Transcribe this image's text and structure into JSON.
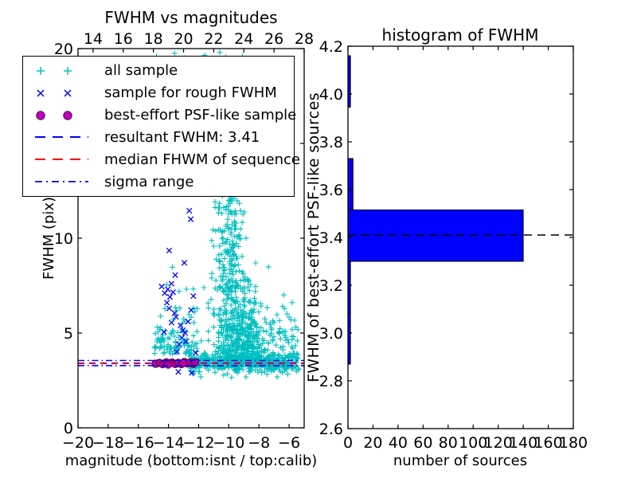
{
  "colors": {
    "cyan_sample": "#00bfbf",
    "blue": "#0000ff",
    "magenta": "#bf00bf",
    "magenta_edge": "#4d004d",
    "red": "#ff0000",
    "black": "#000000",
    "bar_fill": "#0000ff",
    "background": "#ffffff"
  },
  "render_seed": 20421,
  "left_plot": {
    "title": "FWHM vs magnitudes",
    "xlabel": "magnitude (bottom:isnt / top:calib)",
    "ylabel": "FWHM (pix)",
    "legend": [
      {
        "label": "all sample",
        "marker": "plus",
        "color": "#00bfbf"
      },
      {
        "label": "sample for rough FWHM",
        "marker": "x",
        "color": "#0000ff"
      },
      {
        "label": "best-effort PSF-like sample",
        "marker": "circle",
        "color": "#bf00bf"
      },
      {
        "label": "resultant FWHM: 3.41",
        "marker": "dashed",
        "color": "#0000ff"
      },
      {
        "label": "median FHWM of sequence",
        "marker": "dashed",
        "color": "#ff0000"
      },
      {
        "label": "sigma range",
        "marker": "dashdot",
        "color": "#0000ff"
      }
    ]
  },
  "right_plot": {
    "title": "histogram of FWHM",
    "xlabel": "number of sources",
    "ylabel": "FWHM of best-effort PSF-like sources"
  },
  "chart_data": [
    {
      "type": "scatter",
      "title": "FWHM vs magnitudes",
      "xlabel": "magnitude (bottom:isnt / top:calib)",
      "ylabel": "FWHM (pix)",
      "xlim_bottom": [
        -20,
        -5
      ],
      "xlim_top": [
        13,
        28
      ],
      "ylim": [
        0,
        20
      ],
      "xticks_bottom": [
        -20,
        -18,
        -16,
        -14,
        -12,
        -10,
        -8,
        -6
      ],
      "xticks_top": [
        14,
        16,
        18,
        20,
        22,
        24,
        26,
        28
      ],
      "yticks": [
        0,
        5,
        10,
        15,
        20
      ],
      "series": [
        {
          "name": "all sample",
          "marker": "plus",
          "color": "#00bfbf",
          "clusters": [
            {
              "n": 330,
              "x": [
                "u",
                -12.6,
                -5.35
              ],
              "y": [
                "n",
                3.45,
                0.28
              ]
            },
            {
              "n": 120,
              "x": [
                "n",
                -8.3,
                1.3
              ],
              "xc": [
                -12.5,
                -5.4
              ],
              "y": [
                "n",
                3.38,
                0.17
              ]
            },
            {
              "n": 500,
              "x": [
                "n",
                -9.35,
                0.95
              ],
              "xc": [
                -11.9,
                -5.45
              ],
              "y": [
                "hn",
                3.35,
                2.0
              ],
              "yc": [
                0,
                9.6
              ]
            },
            {
              "n": 210,
              "x": [
                "n",
                -9.9,
                0.5
              ],
              "xc": [
                -11.5,
                -8.5
              ],
              "y": [
                "u",
                6.5,
                13.4
              ]
            },
            {
              "n": 45,
              "x": [
                "n",
                -9.8,
                1.05
              ],
              "y": [
                "u",
                13.4,
                18.9
              ]
            },
            {
              "n": 115,
              "x": [
                "u",
                -14.95,
                -12.1
              ],
              "y": [
                "e",
                3.9,
                2.1
              ],
              "yc": [
                0,
                12.4
              ]
            },
            {
              "n": 65,
              "x": [
                "u",
                -7.5,
                -5.4
              ],
              "y": [
                "n",
                4.6,
                1.1
              ],
              "yc": [
                3.05,
                8.2
              ]
            },
            {
              "n": 14,
              "x": [
                "u",
                -12.4,
                -10.6
              ],
              "y": [
                "u",
                11.5,
                18.6
              ]
            }
          ],
          "points": [
            [
              -14.8,
              19.6
            ],
            [
              -13.6,
              19.75
            ],
            [
              -12.9,
              19.5
            ],
            [
              -11.6,
              19.65
            ],
            [
              -11.3,
              19.45
            ],
            [
              -10.6,
              19.8
            ],
            [
              -10.2,
              19.55
            ],
            [
              -9.9,
              19.4
            ],
            [
              -9.1,
              19.6
            ]
          ]
        },
        {
          "name": "sample for rough FWHM",
          "marker": "x",
          "color": "#0000ff",
          "points": [
            [
              -14.45,
              7.45
            ],
            [
              -14.25,
              7.1
            ],
            [
              -14.05,
              7.3
            ],
            [
              -13.9,
              6.9
            ],
            [
              -13.8,
              7.6
            ],
            [
              -13.7,
              7.15
            ],
            [
              -14.1,
              6.6
            ],
            [
              -13.95,
              6.3
            ],
            [
              -13.6,
              6.05
            ],
            [
              -13.5,
              5.85
            ],
            [
              -13.8,
              5.55
            ],
            [
              -14.3,
              5.05
            ],
            [
              -13.2,
              5.4
            ],
            [
              -13.05,
              5.15
            ],
            [
              -12.9,
              5.0
            ],
            [
              -13.1,
              4.75
            ],
            [
              -12.85,
              4.55
            ],
            [
              -13.3,
              4.4
            ],
            [
              -12.62,
              11.45
            ],
            [
              -12.52,
              11.0
            ],
            [
              -13.95,
              9.35
            ],
            [
              -12.95,
              8.7
            ],
            [
              -13.55,
              8.05
            ],
            [
              -12.35,
              6.95
            ],
            [
              -12.5,
              6.2
            ],
            [
              -12.7,
              5.6
            ],
            [
              -13.45,
              4.0
            ],
            [
              -12.2,
              3.95
            ],
            [
              -13.35,
              2.95
            ],
            [
              -12.45,
              2.9
            ],
            [
              -12.15,
              3.5
            ],
            [
              -14.05,
              3.35
            ]
          ]
        },
        {
          "name": "best-effort PSF-like sample",
          "marker": "circle",
          "color": "#bf00bf",
          "points": [
            [
              -14.85,
              3.38
            ],
            [
              -14.6,
              3.42
            ],
            [
              -14.38,
              3.36
            ],
            [
              -14.15,
              3.45
            ],
            [
              -13.97,
              3.4
            ],
            [
              -13.76,
              3.44
            ],
            [
              -13.55,
              3.37
            ],
            [
              -13.35,
              3.42
            ],
            [
              -13.15,
              3.36
            ],
            [
              -12.95,
              3.47
            ],
            [
              -12.76,
              3.4
            ],
            [
              -12.56,
              3.44
            ],
            [
              -12.36,
              3.38
            ],
            [
              -12.24,
              3.45
            ],
            [
              -14.02,
              3.34
            ],
            [
              -13.02,
              3.41
            ]
          ]
        }
      ],
      "lines": [
        {
          "name": "resultant FWHM: 3.41",
          "y": 3.41,
          "style": "dashed",
          "color": "#0000ff"
        },
        {
          "name": "median FHWM of sequence",
          "y": 3.39,
          "style": "dashed",
          "color": "#ff0000"
        },
        {
          "name": "sigma range upper",
          "y": 3.55,
          "style": "dashdot",
          "color": "#0000ff"
        },
        {
          "name": "sigma range lower",
          "y": 3.28,
          "style": "dashdot",
          "color": "#0000ff"
        }
      ]
    },
    {
      "type": "barh-histogram",
      "title": "histogram of FWHM",
      "xlabel": "number of sources",
      "ylabel": "FWHM of best-effort PSF-like sources",
      "xlim": [
        0,
        180
      ],
      "ylim": [
        2.6,
        4.2
      ],
      "xticks": [
        0,
        20,
        40,
        60,
        80,
        100,
        120,
        140,
        160,
        180
      ],
      "yticks": [
        2.6,
        2.8,
        3.0,
        3.2,
        3.4,
        3.6,
        3.8,
        4.0,
        4.2
      ],
      "bin_edges": [
        2.87,
        3.085,
        3.3,
        3.515,
        3.73,
        3.945,
        4.16
      ],
      "counts": [
        2,
        2,
        140,
        4,
        0,
        2
      ],
      "bar_color": "#0000ff",
      "median_line": {
        "y": 3.41,
        "style": "dashed",
        "color": "#000000"
      }
    }
  ]
}
